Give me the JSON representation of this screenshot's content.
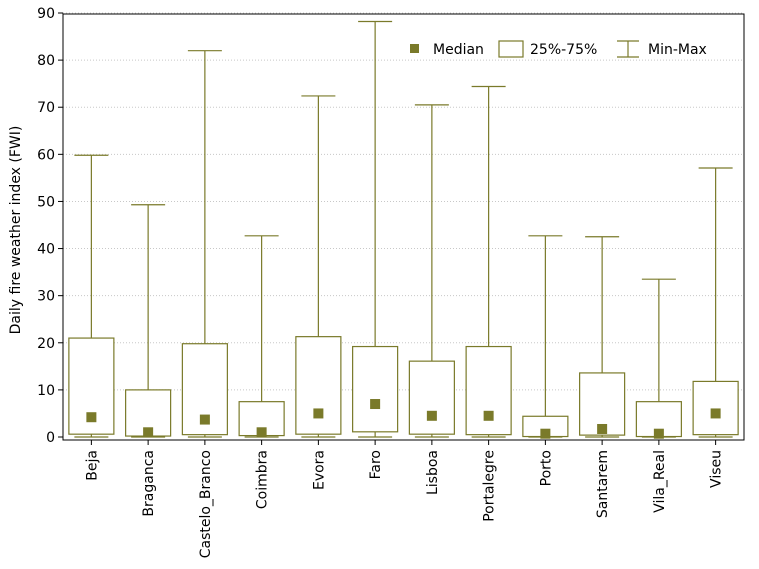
{
  "chart_data": {
    "type": "boxplot",
    "ylabel": "Daily fire weather index (FWI)",
    "xlabel": "",
    "ylim": [
      0,
      90
    ],
    "yticks": [
      0,
      10,
      20,
      30,
      40,
      50,
      60,
      70,
      80,
      90
    ],
    "grid": "horizontal-dotted",
    "legend_position": "top-right",
    "legend": {
      "median": "Median",
      "box": "25%-75%",
      "range": "Min-Max"
    },
    "colors": {
      "series": "#7a7a2a",
      "grid": "#c8c8c8"
    },
    "categories": [
      "Beja",
      "Braganca",
      "Castelo_Branco",
      "Coimbra",
      "Evora",
      "Faro",
      "Lisboa",
      "Portalegre",
      "Porto",
      "Santarem",
      "Vila_Real",
      "Viseu"
    ],
    "median": [
      4.2,
      1.0,
      3.7,
      1.0,
      5.0,
      7.0,
      4.5,
      4.5,
      0.7,
      1.7,
      0.7,
      5.0
    ],
    "q1": [
      0.6,
      0.2,
      0.5,
      0.3,
      0.6,
      1.1,
      0.6,
      0.5,
      0.1,
      0.4,
      0.1,
      0.5
    ],
    "q3": [
      21.0,
      10.0,
      19.8,
      7.5,
      21.3,
      19.2,
      16.1,
      19.2,
      4.4,
      13.6,
      7.5,
      11.8
    ],
    "min": [
      0,
      0,
      0,
      0,
      0,
      0,
      0,
      0,
      0,
      0,
      0,
      0
    ],
    "max": [
      59.8,
      49.3,
      82.0,
      42.7,
      72.4,
      88.2,
      70.5,
      74.4,
      42.7,
      42.5,
      33.5,
      57.1
    ]
  }
}
